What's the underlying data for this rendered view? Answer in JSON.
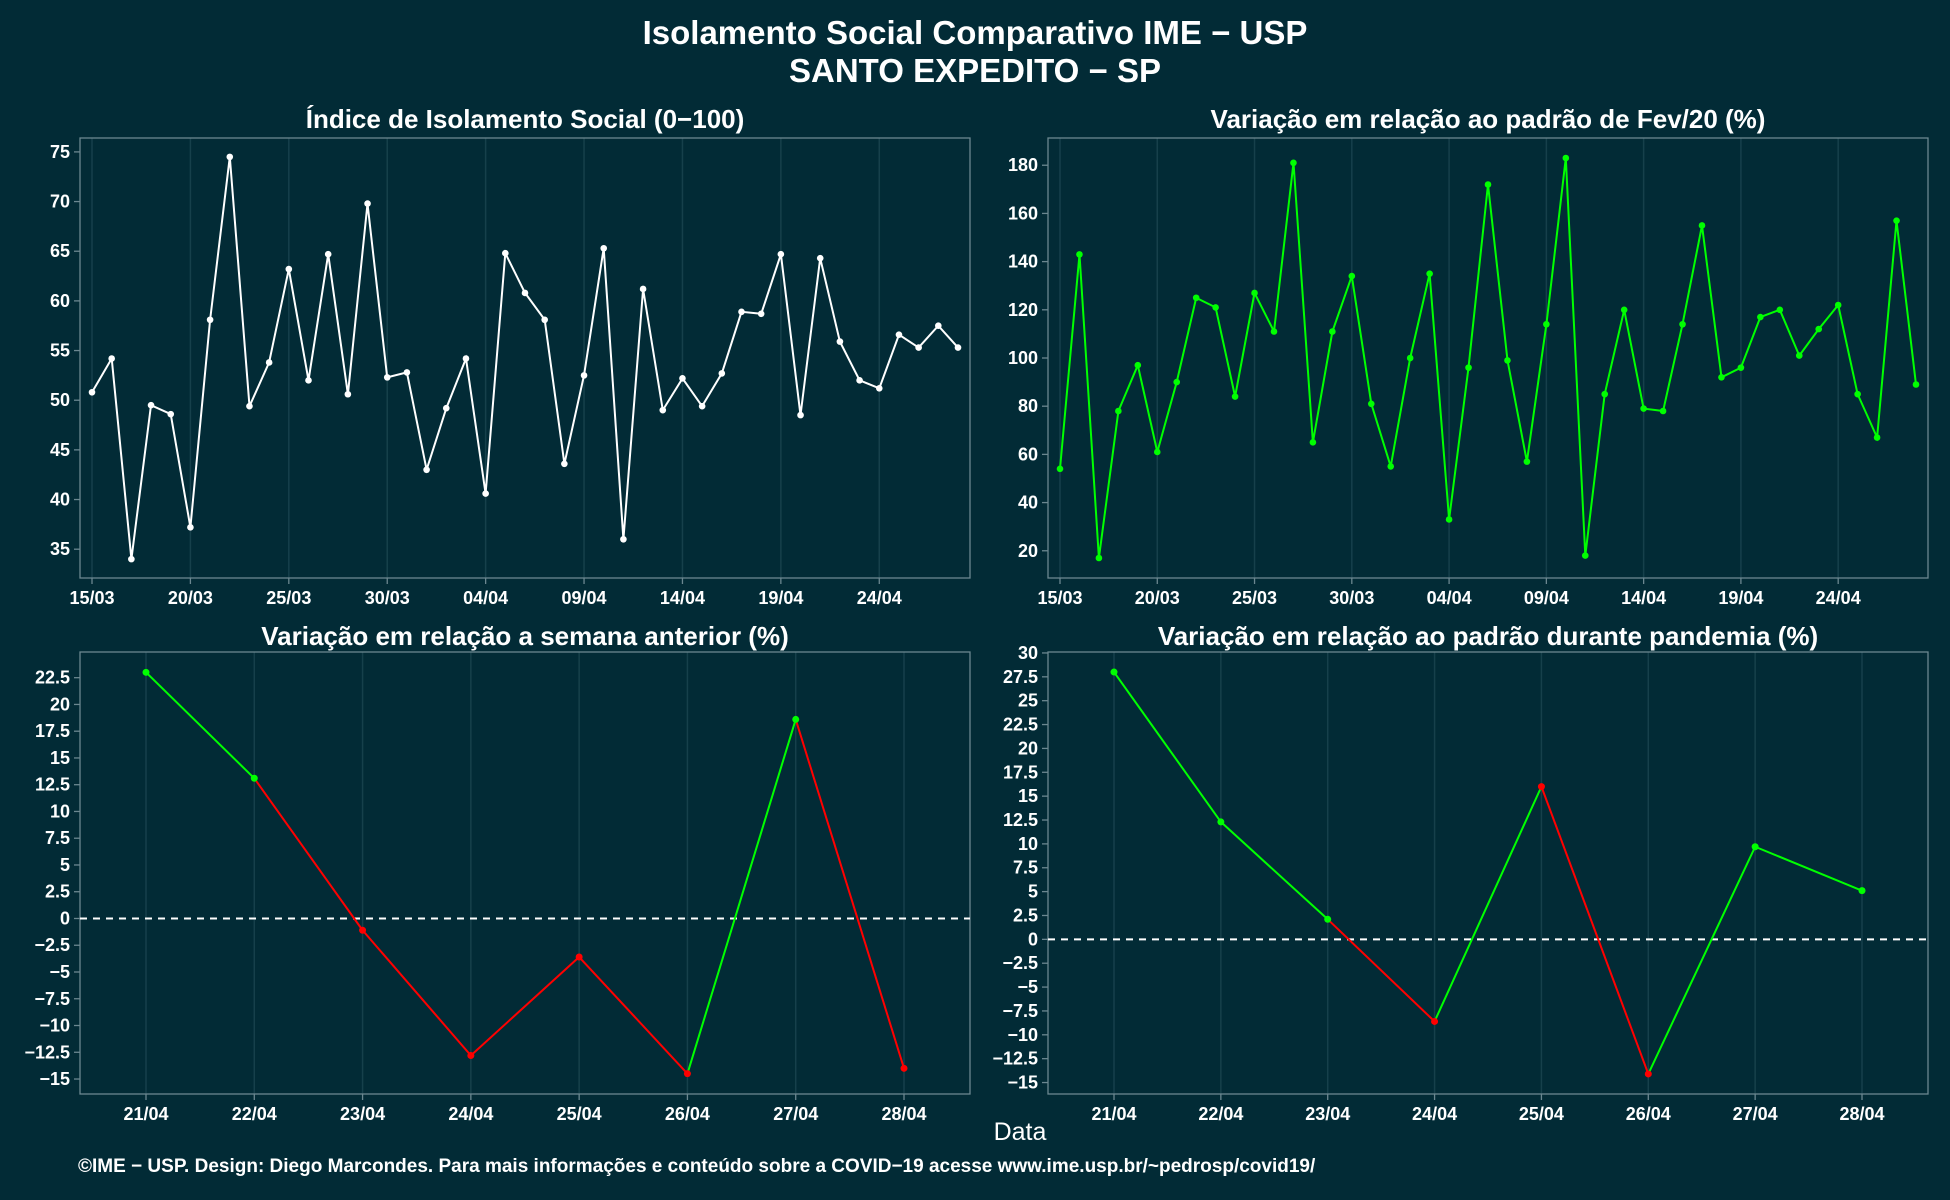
{
  "header": {
    "title_line1": "Isolamento Social Comparativo IME − USP",
    "title_line2": "SANTO EXPEDITO − SP"
  },
  "xlabel": "Data",
  "footer": "©IME − USP. Design: Diego Marcondes. Para mais informações e conteúdo sobre a COVID−19 acesse www.ime.usp.br/~pedrosp/covid19/",
  "colors": {
    "background": "#022b36",
    "panel_border": "#6b8790",
    "grid": "#16404b",
    "white_series": "#ffffff",
    "green": "#00ff00",
    "red": "#ff0000"
  },
  "chart_data": [
    {
      "type": "line",
      "title": "Índice de Isolamento Social (0−100)",
      "x_tick_labels": [
        "15/03",
        "20/03",
        "25/03",
        "30/03",
        "04/04",
        "09/04",
        "14/04",
        "19/04",
        "24/04"
      ],
      "x": [
        "15/03",
        "16/03",
        "17/03",
        "18/03",
        "19/03",
        "20/03",
        "21/03",
        "22/03",
        "23/03",
        "24/03",
        "25/03",
        "26/03",
        "27/03",
        "28/03",
        "29/03",
        "30/03",
        "31/03",
        "01/04",
        "02/04",
        "03/04",
        "04/04",
        "05/04",
        "06/04",
        "07/04",
        "08/04",
        "09/04",
        "10/04",
        "11/04",
        "12/04",
        "13/04",
        "14/04",
        "15/04",
        "16/04",
        "17/04",
        "18/04",
        "19/04",
        "20/04",
        "21/04",
        "22/04",
        "23/04",
        "24/04",
        "25/04",
        "26/04",
        "27/04",
        "28/04"
      ],
      "series": [
        {
          "values": [
            50.8,
            54.2,
            34.0,
            49.5,
            48.6,
            37.2,
            58.1,
            74.5,
            49.4,
            53.8,
            63.2,
            52.0,
            64.7,
            50.6,
            69.8,
            52.3,
            52.8,
            43.0,
            49.2,
            54.2,
            40.6,
            64.8,
            60.8,
            58.1,
            43.6,
            52.5,
            65.3,
            36.0,
            61.2,
            49.0,
            52.2,
            49.4,
            52.7,
            58.9,
            58.7,
            64.7,
            48.5,
            64.3,
            55.9,
            52.0,
            51.2,
            56.6,
            55.3,
            57.5,
            55.3
          ]
        }
      ],
      "yticks": [
        35,
        40,
        45,
        50,
        55,
        60,
        65,
        70,
        75
      ],
      "ylim": [
        32.1,
        76.4
      ],
      "grid": true
    },
    {
      "type": "line",
      "title": "Variação em relação ao padrão de Fev/20 (%)",
      "x_tick_labels": [
        "15/03",
        "20/03",
        "25/03",
        "30/03",
        "04/04",
        "09/04",
        "14/04",
        "19/04",
        "24/04"
      ],
      "x": [
        "15/03",
        "16/03",
        "17/03",
        "18/03",
        "19/03",
        "20/03",
        "21/03",
        "22/03",
        "23/03",
        "24/03",
        "25/03",
        "26/03",
        "27/03",
        "28/03",
        "29/03",
        "30/03",
        "31/03",
        "01/04",
        "02/04",
        "03/04",
        "04/04",
        "05/04",
        "06/04",
        "07/04",
        "08/04",
        "09/04",
        "10/04",
        "11/04",
        "12/04",
        "13/04",
        "14/04",
        "15/04",
        "16/04",
        "17/04",
        "18/04",
        "19/04",
        "20/04",
        "21/04",
        "22/04",
        "23/04",
        "24/04",
        "25/04",
        "26/04",
        "27/04",
        "28/04"
      ],
      "series": [
        {
          "values": [
            54,
            143,
            17,
            78,
            97,
            61,
            90,
            125,
            121,
            84,
            127,
            111,
            181,
            65,
            111,
            134,
            81,
            55,
            100,
            135,
            33,
            96,
            172,
            99,
            57,
            114,
            183,
            18,
            85,
            120,
            79,
            78,
            114,
            155,
            92,
            96,
            117,
            120,
            101,
            112,
            122,
            85,
            67,
            157,
            89
          ]
        }
      ],
      "yticks": [
        20,
        40,
        60,
        80,
        100,
        120,
        140,
        160,
        180
      ],
      "ylim": [
        8.7,
        191.3
      ],
      "grid": true
    },
    {
      "type": "line",
      "title": "Variação em relação a semana anterior (%)",
      "x": [
        "21/04",
        "22/04",
        "23/04",
        "24/04",
        "25/04",
        "26/04",
        "27/04",
        "28/04"
      ],
      "series": [
        {
          "values": [
            23.0,
            13.1,
            -1.1,
            -12.8,
            -3.6,
            -14.5,
            18.6,
            -14.0
          ]
        }
      ],
      "segment_colors": [
        "green",
        "red",
        "red",
        "red",
        "red",
        "green",
        "red"
      ],
      "point_colors": [
        "green",
        "green",
        "red",
        "red",
        "red",
        "red",
        "green",
        "red"
      ],
      "yticks": [
        -15,
        -12.5,
        -10,
        -7.5,
        -5,
        -2.5,
        0,
        2.5,
        5,
        7.5,
        10,
        12.5,
        15,
        17.5,
        20,
        22.5
      ],
      "ylim": [
        -16.4,
        24.9
      ],
      "reference_line": 0,
      "grid": true
    },
    {
      "type": "line",
      "title": "Variação em relação ao padrão durante pandemia (%)",
      "x": [
        "21/04",
        "22/04",
        "23/04",
        "24/04",
        "25/04",
        "26/04",
        "27/04",
        "28/04"
      ],
      "series": [
        {
          "values": [
            28.0,
            12.3,
            2.1,
            -8.6,
            16.0,
            -14.1,
            9.7,
            5.1
          ]
        }
      ],
      "segment_colors": [
        "green",
        "green",
        "red",
        "green",
        "red",
        "green",
        "green"
      ],
      "point_colors": [
        "green",
        "green",
        "green",
        "red",
        "red",
        "red",
        "green",
        "green"
      ],
      "yticks": [
        -15,
        -12.5,
        -10,
        -7.5,
        -5,
        -2.5,
        0,
        2.5,
        5,
        7.5,
        10,
        12.5,
        15,
        17.5,
        20,
        22.5,
        25,
        27.5,
        30
      ],
      "ylim": [
        -16.2,
        30.1
      ],
      "reference_line": 0,
      "grid": true
    }
  ]
}
